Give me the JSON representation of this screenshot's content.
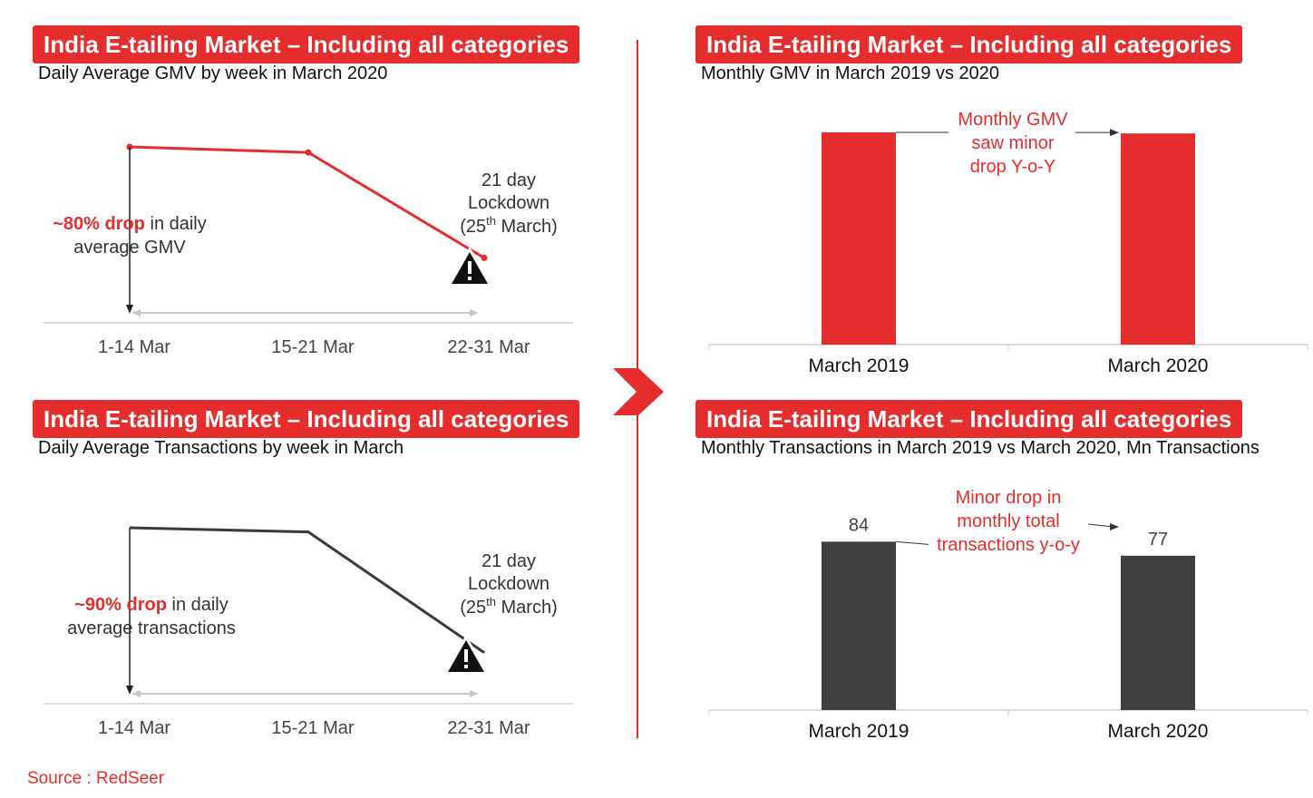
{
  "source": "Source : RedSeer",
  "colors": {
    "accent": "#e52d2d",
    "dark_bar": "#3f3f3d",
    "line_red": "#e52d2d",
    "line_dark": "#3a3a3a"
  },
  "chart_data": [
    {
      "type": "line",
      "title": "India E-tailing Market – Including all categories",
      "subtitle": "Daily Average GMV by week in March 2020",
      "categories": [
        "1-14 Mar",
        "15-21 Mar",
        "22-31 Mar"
      ],
      "series": [
        {
          "values": [
            100,
            96,
            20
          ]
        }
      ],
      "ylim": [
        0,
        100
      ],
      "annotations": {
        "drop_bold": "~80% drop",
        "drop_rest": " in daily",
        "drop_line2": "average GMV",
        "lockdown_1": "21 day",
        "lockdown_2": "Lockdown",
        "lockdown_3a": "(25",
        "lockdown_3sup": "th",
        "lockdown_3b": " March)",
        "warning_icon": "warning-icon"
      }
    },
    {
      "type": "line",
      "title": "India E-tailing Market – Including all categories",
      "subtitle": "Daily Average Transactions by week in March",
      "categories": [
        "1-14 Mar",
        "15-21 Mar",
        "22-31 Mar"
      ],
      "series": [
        {
          "values": [
            100,
            97,
            10
          ]
        }
      ],
      "ylim": [
        0,
        100
      ],
      "annotations": {
        "drop_bold": "~90% drop",
        "drop_rest": " in daily",
        "drop_line2": "average transactions",
        "lockdown_1": "21 day",
        "lockdown_2": "Lockdown",
        "lockdown_3a": "(25",
        "lockdown_3sup": "th",
        "lockdown_3b": " March)",
        "warning_icon": "warning-icon"
      }
    },
    {
      "type": "bar",
      "title": "India E-tailing Market – Including all categories",
      "subtitle": "Monthly GMV in March 2019 vs 2020",
      "categories": [
        "March 2019",
        "March 2020"
      ],
      "values": [
        100,
        99.5
      ],
      "ylim": [
        0,
        100
      ],
      "annotation": [
        "Monthly GMV",
        "saw minor",
        "drop Y-o-Y"
      ]
    },
    {
      "type": "bar",
      "title": "India E-tailing Market – Including all categories",
      "subtitle": "Monthly Transactions in March 2019 vs March 2020, Mn Transactions",
      "categories": [
        "March 2019",
        "March 2020"
      ],
      "values": [
        84,
        77
      ],
      "data_labels": [
        "84",
        "77"
      ],
      "ylim": [
        0,
        100
      ],
      "annotation": [
        "Minor drop in",
        "monthly total",
        "transactions y-o-y"
      ]
    }
  ]
}
